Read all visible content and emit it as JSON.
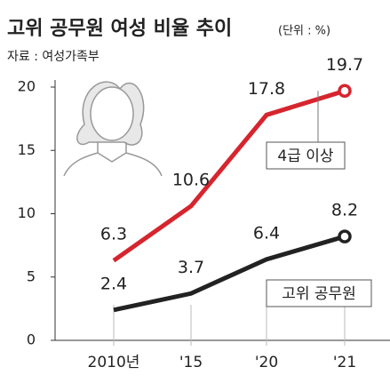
{
  "chart_data": {
    "type": "line",
    "title": "고위 공무원 여성 비율 추이",
    "subtitle": "(단위 : %)",
    "source": "자료 : 여성가족부",
    "categories": [
      "2010년",
      "'15",
      "'20",
      "'21"
    ],
    "series": [
      {
        "name": "4급 이상",
        "color": "#d6252e",
        "values": [
          6.3,
          10.6,
          17.8,
          19.7
        ]
      },
      {
        "name": "고위 공무원",
        "color": "#222222",
        "values": [
          2.4,
          3.7,
          6.4,
          8.2
        ]
      }
    ],
    "ylim": [
      0,
      20
    ],
    "yticks": [
      0,
      5,
      10,
      15,
      20
    ]
  }
}
